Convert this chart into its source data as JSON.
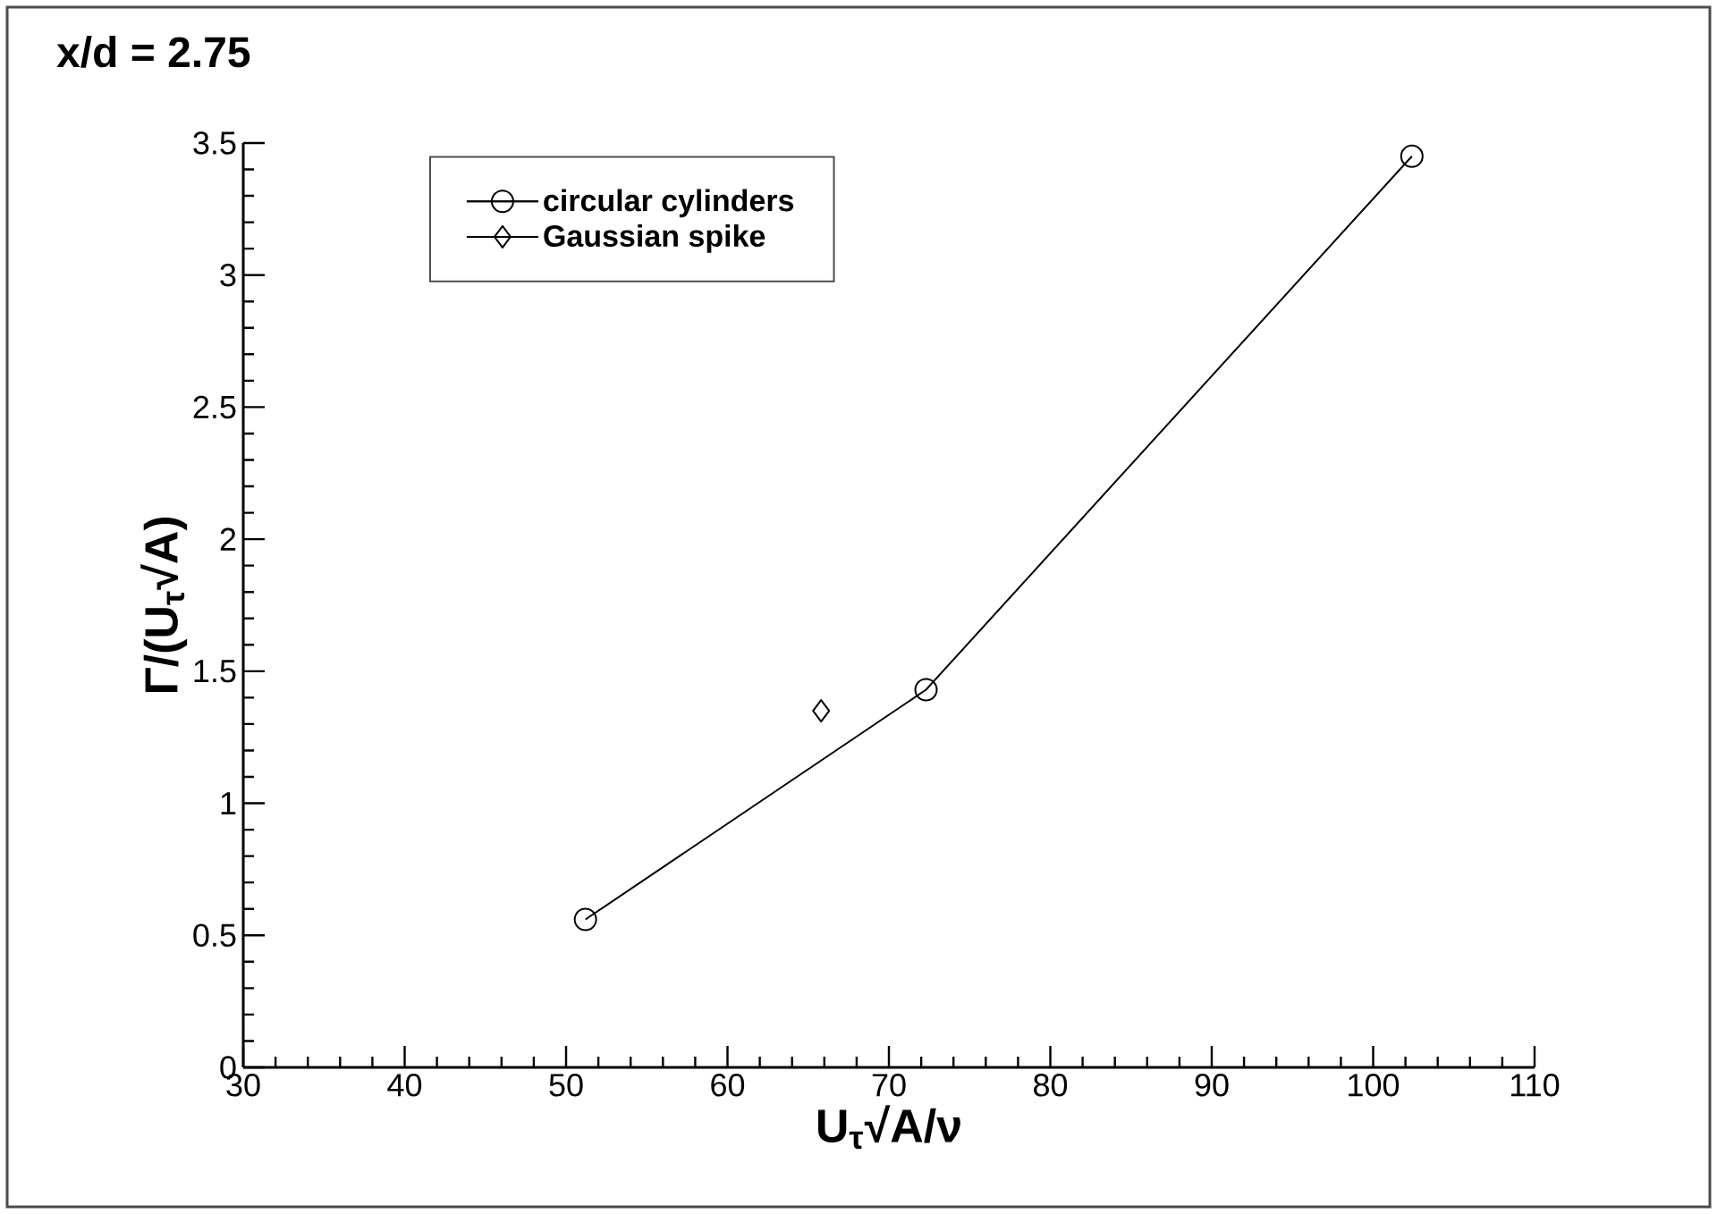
{
  "chart_data": {
    "type": "line",
    "title": "x/d = 2.75",
    "xlabel": "U$_{τ}$√A/ν",
    "ylabel": "Γ/(U$_{τ}$√A)",
    "xlim": [
      30,
      110
    ],
    "xticks": [
      30,
      40,
      50,
      60,
      70,
      80,
      90,
      100,
      110
    ],
    "ylim": [
      0,
      3.5
    ],
    "yticks": [
      0,
      0.5,
      1,
      1.5,
      2,
      2.5,
      3,
      3.5
    ],
    "grid": false,
    "legend": "top left",
    "line_style": "solid",
    "series": [
      {
        "name": "circular cylinders",
        "color": "#000000",
        "marker": "circle",
        "x": [
          51.2,
          72.3,
          102.4
        ],
        "values": [
          0.56,
          1.43,
          3.45
        ]
      },
      {
        "name": "Gaussian spike",
        "color": "#000000",
        "marker": "diamond",
        "x": [
          65.8
        ],
        "values": [
          1.35
        ]
      }
    ]
  }
}
